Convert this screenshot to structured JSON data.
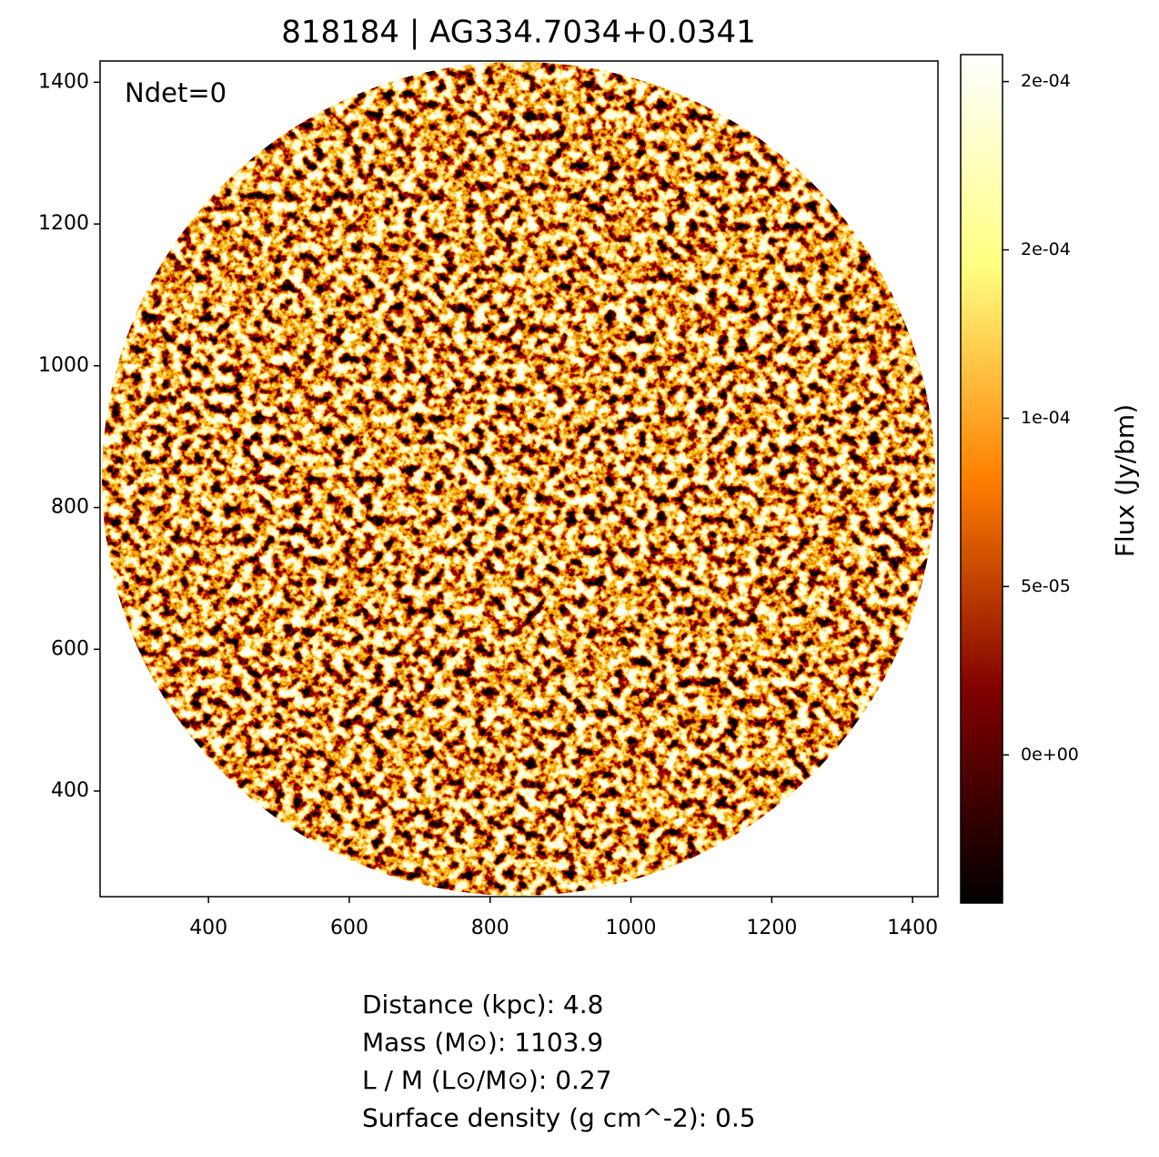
{
  "chart_data": {
    "type": "image",
    "title": "818184 | AG334.7034+0.0341",
    "annotation": "Ndet=0",
    "xlim": [
      246,
      1436
    ],
    "ylim": [
      251,
      1430
    ],
    "xticks": [
      400,
      600,
      800,
      1000,
      1200,
      1400
    ],
    "yticks": [
      400,
      600,
      800,
      1000,
      1200,
      1400
    ],
    "colorbar": {
      "label": "Flux (Jy/bm)",
      "lim": [
        -4.4e-05,
        0.000208
      ],
      "ticks": [
        {
          "value": 0,
          "label": "0e+00"
        },
        {
          "value": 5e-05,
          "label": "5e-05"
        },
        {
          "value": 0.0001,
          "label": "1e-04"
        },
        {
          "value": 0.00015,
          "label": "2e-04"
        },
        {
          "value": 0.0002,
          "label": "2e-04"
        }
      ],
      "colors": [
        "#000000",
        "#800000",
        "#ff8000",
        "#ffff80",
        "#ffffff"
      ]
    },
    "info": [
      "Distance (kpc): 4.8",
      "Mass (M⊙): 1103.9",
      "L / M (L⊙/M⊙): 0.27",
      "Surface density (g cm^-2): 0.5"
    ]
  }
}
